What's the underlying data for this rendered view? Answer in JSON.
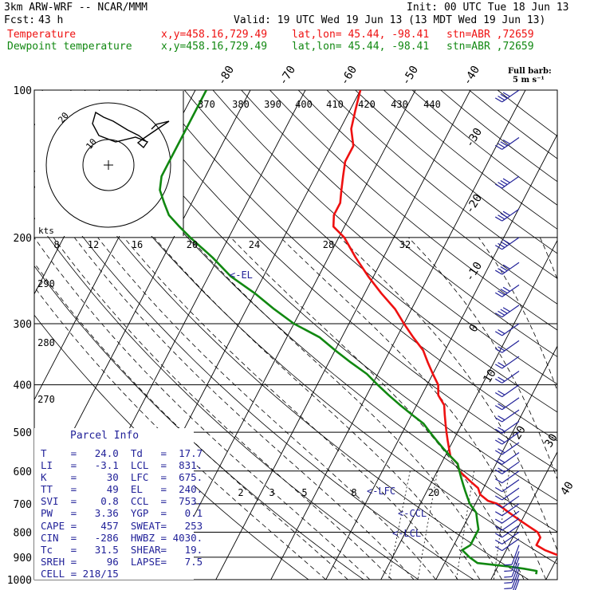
{
  "header": {
    "model": "3km ARW-WRF -- NCAR/MMM",
    "init": "Init: 00 UTC Tue 18 Jun 13",
    "fcst_label": "Fcst:",
    "fcst_value": "43 h",
    "valid": "Valid: 19 UTC Wed 19 Jun 13 (13 MDT Wed 19 Jun 13)",
    "temp_label": "Temperature",
    "dew_label": "Dewpoint temperature",
    "xy": "x,y=458.16,729.49",
    "latlon": "lat,lon= 45.44, -98.41",
    "stn": "stn=ABR ,72659"
  },
  "colors": {
    "temperature": "#ee1111",
    "dewpoint": "#118811",
    "barb": "#222299",
    "dashed": "#000000"
  },
  "barb_legend": {
    "title": "Full barb:",
    "value": "5 m s⁻¹"
  },
  "parcel": {
    "title": "Parcel Info",
    "rows": [
      [
        "T",
        "24.0",
        "Td",
        "17.7"
      ],
      [
        "LI",
        "-3.1",
        "LCL",
        "831."
      ],
      [
        "K",
        "30",
        "LFC",
        "675."
      ],
      [
        "TT",
        "49",
        "EL",
        "240."
      ],
      [
        "SVI",
        "0.8",
        "CCL",
        "753."
      ],
      [
        "PW",
        "3.36",
        "YGP",
        "0.1"
      ],
      [
        "CAPE",
        "457",
        "SWEAT",
        "253"
      ],
      [
        "CIN",
        "-286",
        "HWBZ",
        "4030."
      ],
      [
        "Tc",
        "31.5",
        "SHEAR",
        "19."
      ],
      [
        "SREH",
        "96",
        "LAPSE",
        "7.5"
      ],
      [
        "CELL",
        "218/15",
        "",
        ""
      ]
    ]
  },
  "hodograph": {
    "unit": "kts",
    "ring_labels": [
      "20",
      "10"
    ],
    "theta_labels": [
      "370",
      "380",
      "390",
      "400",
      "410",
      "420",
      "430",
      "440"
    ]
  },
  "annotations": {
    "el": "<-EL",
    "lfc": "<-LFC",
    "ccl": "<-CCL",
    "lcl": "<-LCL"
  },
  "mixing_ratio_labels": [
    "2",
    "3",
    "5",
    "8",
    "20"
  ],
  "chart_data": {
    "type": "line",
    "title": "",
    "y_axis": {
      "scale": "log",
      "ticks": [
        "100",
        "200",
        "300",
        "400",
        "500",
        "600",
        "700",
        "800",
        "900",
        "1000"
      ]
    },
    "isotherm_labels": [
      "-80",
      "-70",
      "-60",
      "-50",
      "-40",
      "-30",
      "-20",
      "-10",
      "0",
      "10",
      "20",
      "30",
      "40"
    ],
    "theta_w_labels": [
      "8",
      "12",
      "16",
      "20",
      "24",
      "28",
      "32"
    ],
    "theta_labels_left": [
      "290",
      "280",
      "270"
    ],
    "series": [
      {
        "name": "Temperature",
        "points": [
          [
            1000,
            31
          ],
          [
            985,
            26
          ],
          [
            960,
            24
          ],
          [
            925,
            23.5
          ],
          [
            900,
            21
          ],
          [
            870,
            17
          ],
          [
            850,
            15
          ],
          [
            820,
            15
          ],
          [
            800,
            14
          ],
          [
            780,
            12
          ],
          [
            760,
            10
          ],
          [
            740,
            8
          ],
          [
            720,
            6
          ],
          [
            700,
            4
          ],
          [
            690,
            2
          ],
          [
            670,
            0
          ],
          [
            650,
            -1
          ],
          [
            630,
            -3
          ],
          [
            610,
            -5
          ],
          [
            600,
            -6
          ],
          [
            580,
            -7
          ],
          [
            560,
            -9
          ],
          [
            540,
            -10
          ],
          [
            520,
            -11
          ],
          [
            500,
            -12
          ],
          [
            480,
            -13
          ],
          [
            460,
            -14
          ],
          [
            440,
            -15
          ],
          [
            420,
            -17
          ],
          [
            400,
            -18
          ],
          [
            380,
            -20
          ],
          [
            360,
            -22
          ],
          [
            340,
            -24
          ],
          [
            320,
            -27
          ],
          [
            300,
            -30
          ],
          [
            280,
            -33
          ],
          [
            260,
            -37
          ],
          [
            240,
            -41
          ],
          [
            220,
            -45
          ],
          [
            200,
            -49
          ],
          [
            190,
            -52
          ],
          [
            180,
            -53
          ],
          [
            170,
            -53
          ],
          [
            160,
            -54
          ],
          [
            150,
            -55
          ],
          [
            140,
            -56
          ],
          [
            130,
            -56
          ],
          [
            120,
            -58
          ],
          [
            110,
            -59
          ],
          [
            100,
            -60
          ]
        ]
      },
      {
        "name": "Dewpoint temperature",
        "points": [
          [
            975,
            17.7
          ],
          [
            960,
            17.5
          ],
          [
            950,
            15
          ],
          [
            940,
            12
          ],
          [
            925,
            6
          ],
          [
            900,
            4
          ],
          [
            870,
            2
          ],
          [
            850,
            3
          ],
          [
            820,
            3
          ],
          [
            790,
            3
          ],
          [
            760,
            2
          ],
          [
            730,
            1
          ],
          [
            700,
            -1
          ],
          [
            680,
            -2
          ],
          [
            660,
            -3
          ],
          [
            640,
            -4
          ],
          [
            620,
            -5
          ],
          [
            600,
            -6
          ],
          [
            580,
            -7
          ],
          [
            560,
            -9
          ],
          [
            540,
            -11
          ],
          [
            520,
            -13
          ],
          [
            500,
            -15
          ],
          [
            480,
            -17
          ],
          [
            460,
            -20
          ],
          [
            440,
            -23
          ],
          [
            420,
            -26
          ],
          [
            400,
            -29
          ],
          [
            380,
            -32
          ],
          [
            360,
            -36
          ],
          [
            340,
            -40
          ],
          [
            320,
            -44
          ],
          [
            300,
            -50
          ],
          [
            280,
            -55
          ],
          [
            260,
            -60
          ],
          [
            240,
            -66
          ],
          [
            220,
            -71
          ],
          [
            200,
            -77
          ],
          [
            190,
            -80
          ],
          [
            180,
            -83
          ],
          [
            170,
            -85
          ],
          [
            160,
            -87
          ],
          [
            150,
            -88
          ],
          [
            140,
            -88
          ],
          [
            130,
            -88
          ],
          [
            120,
            -88
          ],
          [
            110,
            -88
          ],
          [
            100,
            -88
          ]
        ]
      }
    ]
  }
}
